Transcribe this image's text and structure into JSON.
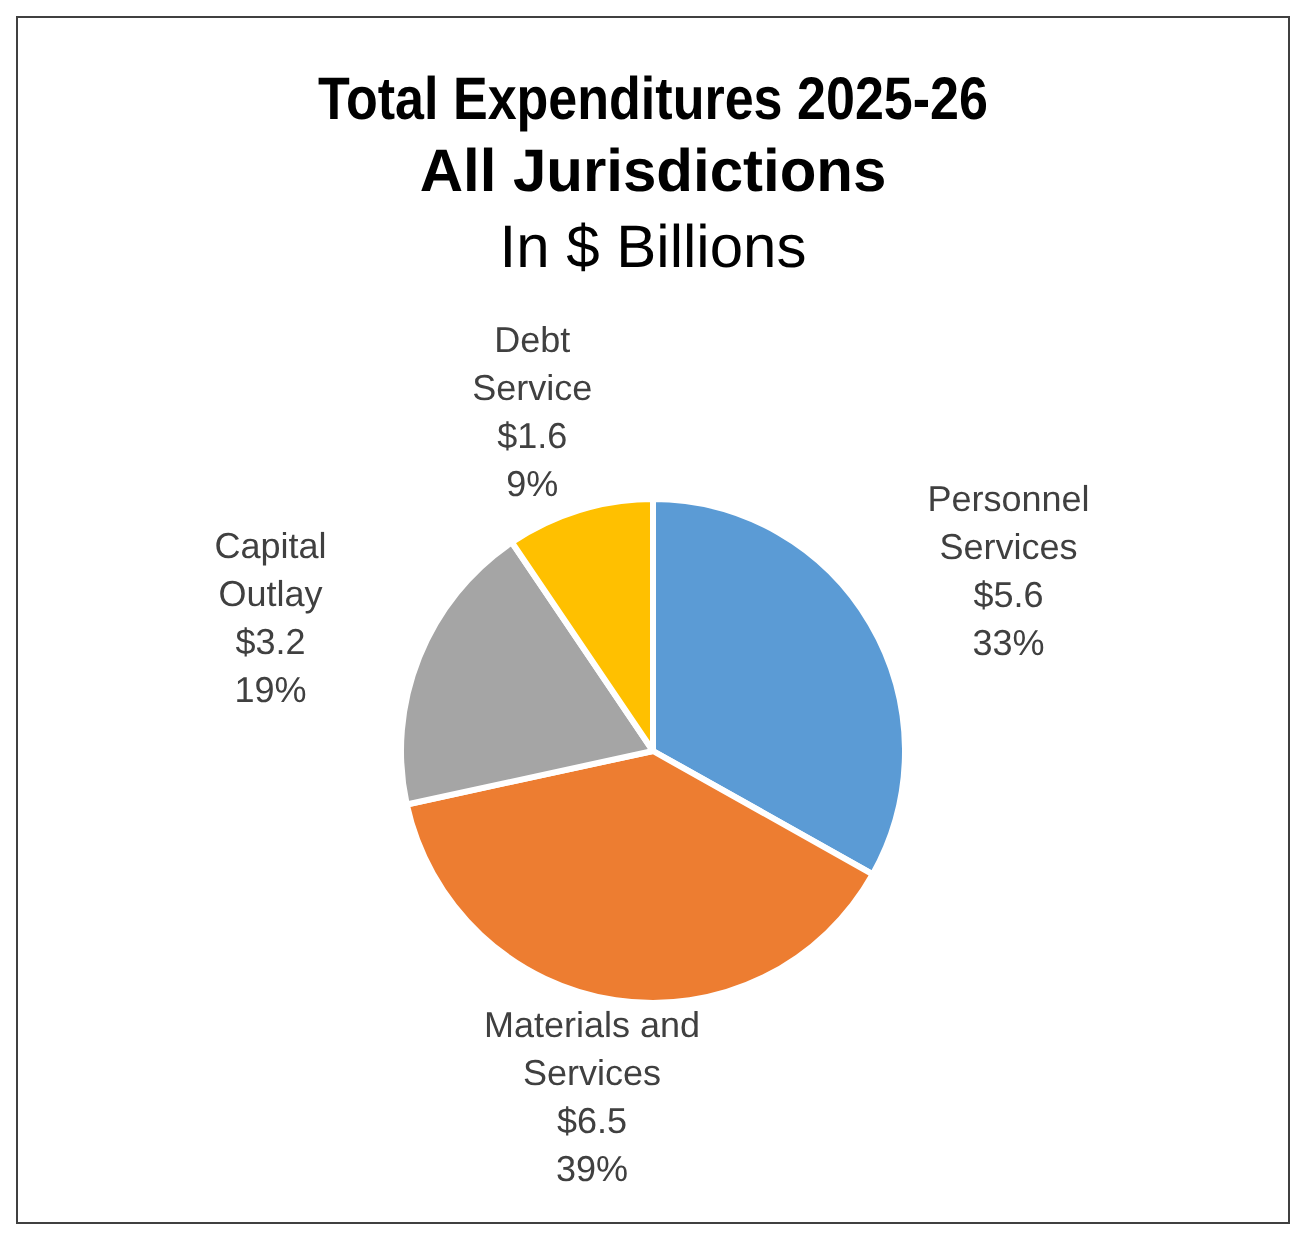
{
  "chart_data": {
    "type": "pie",
    "title": "Total Expenditures 2025-26\nAll Jurisdictions",
    "subtitle": "In $ Billions",
    "categories": [
      "Personnel\nServices",
      "Materials and\nServices",
      "Capital\nOutlay",
      "Debt\nService"
    ],
    "values": [
      5.6,
      6.5,
      3.2,
      1.6
    ],
    "value_labels": [
      "$5.6\n33%",
      "$6.5\n39%",
      "$3.2\n19%",
      "$1.6\n9%"
    ],
    "colors": [
      "#5b9bd5",
      "#ed7d31",
      "#a5a5a5",
      "#ffc000"
    ],
    "legend": false
  }
}
